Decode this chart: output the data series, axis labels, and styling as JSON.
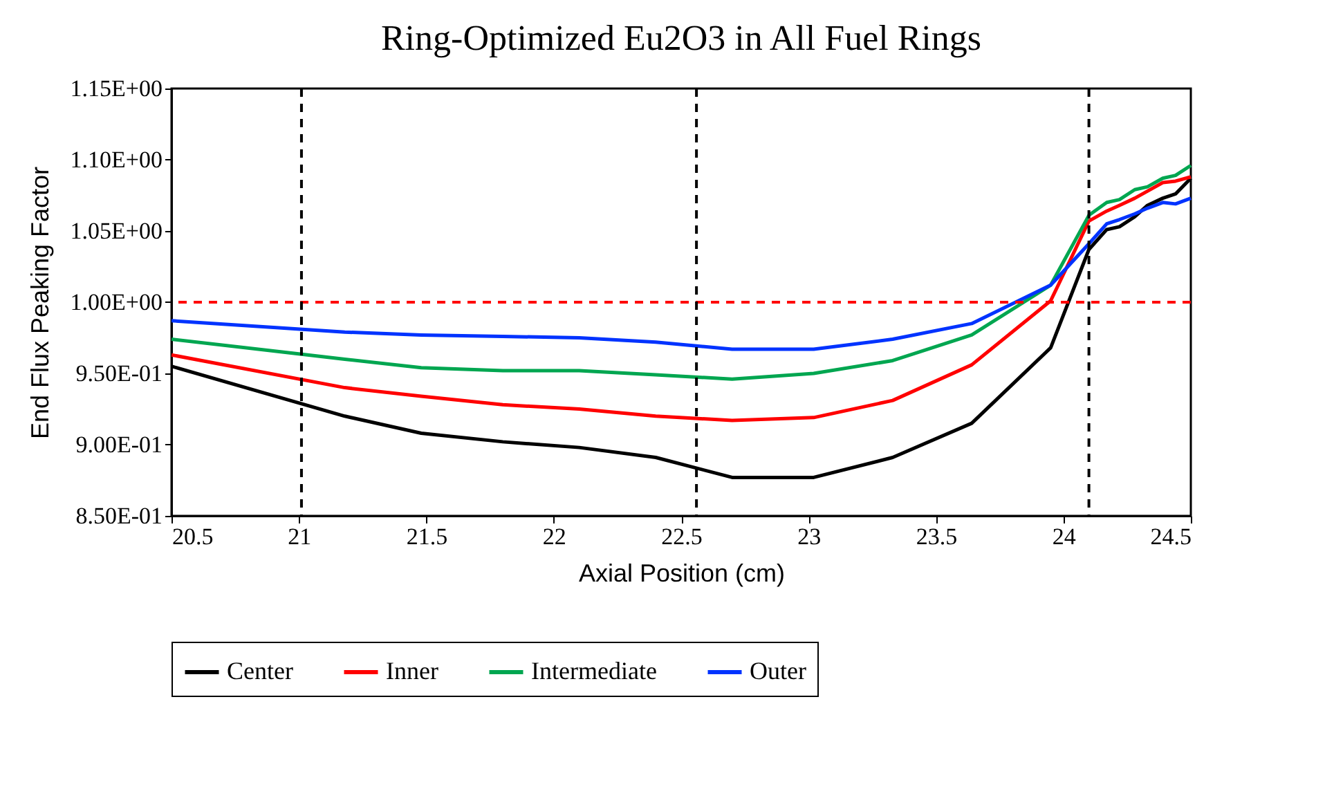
{
  "chart_data": {
    "type": "line",
    "title": "Ring-Optimized Eu2O3 in All Fuel Rings",
    "xlabel": "Axial Position (cm)",
    "ylabel": "End Flux Peaking Factor",
    "x": [
      20.5,
      21.18,
      21.48,
      21.8,
      22.1,
      22.4,
      22.7,
      23.02,
      23.33,
      23.64,
      23.95,
      24.1,
      24.17,
      24.22,
      24.28,
      24.33,
      24.39,
      24.44,
      24.5
    ],
    "series": [
      {
        "name": "Center",
        "color": "#000000",
        "values": [
          0.955,
          0.92,
          0.908,
          0.902,
          0.898,
          0.891,
          0.877,
          0.877,
          0.891,
          0.915,
          0.968,
          1.037,
          1.051,
          1.053,
          1.06,
          1.068,
          1.073,
          1.076,
          1.087
        ]
      },
      {
        "name": "Inner",
        "color": "#ff0000",
        "values": [
          0.963,
          0.94,
          0.934,
          0.928,
          0.925,
          0.92,
          0.917,
          0.919,
          0.931,
          0.956,
          1.001,
          1.057,
          1.064,
          1.068,
          1.073,
          1.078,
          1.084,
          1.085,
          1.088
        ]
      },
      {
        "name": "Intermediate",
        "color": "#00a650",
        "values": [
          0.974,
          0.96,
          0.954,
          0.952,
          0.952,
          0.949,
          0.946,
          0.95,
          0.959,
          0.977,
          1.012,
          1.061,
          1.07,
          1.072,
          1.079,
          1.081,
          1.087,
          1.089,
          1.096
        ]
      },
      {
        "name": "Outer",
        "color": "#0033ff",
        "values": [
          0.987,
          0.979,
          0.977,
          0.976,
          0.975,
          0.972,
          0.967,
          0.967,
          0.974,
          0.985,
          1.012,
          1.041,
          1.055,
          1.058,
          1.062,
          1.066,
          1.07,
          1.069,
          1.073
        ]
      }
    ],
    "xlim": [
      20.5,
      24.5
    ],
    "xticks": [
      20.5,
      21,
      21.5,
      22,
      22.5,
      23,
      23.5,
      24,
      24.5
    ],
    "ylim": [
      0.85,
      1.15
    ],
    "yticks": [
      {
        "value": 0.85,
        "label": "8.50E-01"
      },
      {
        "value": 0.9,
        "label": "9.00E-01"
      },
      {
        "value": 0.95,
        "label": "9.50E-01"
      },
      {
        "value": 1.0,
        "label": "1.00E+00"
      },
      {
        "value": 1.05,
        "label": "1.05E+00"
      },
      {
        "value": 1.1,
        "label": "1.10E+00"
      },
      {
        "value": 1.15,
        "label": "1.15E+00"
      }
    ],
    "ref_lines": [
      {
        "axis": "y",
        "value": 1.0,
        "color": "#ff0000",
        "line_style": "dashed"
      },
      {
        "axis": "x",
        "value": 21.01,
        "color": "#000000",
        "line_style": "dashed"
      },
      {
        "axis": "x",
        "value": 22.56,
        "color": "#000000",
        "line_style": "dashed"
      },
      {
        "axis": "x",
        "value": 24.1,
        "color": "#000000",
        "line_style": "dashed"
      }
    ],
    "grid": false,
    "legend": "bottom",
    "marker": "none",
    "line_style": "solid"
  }
}
